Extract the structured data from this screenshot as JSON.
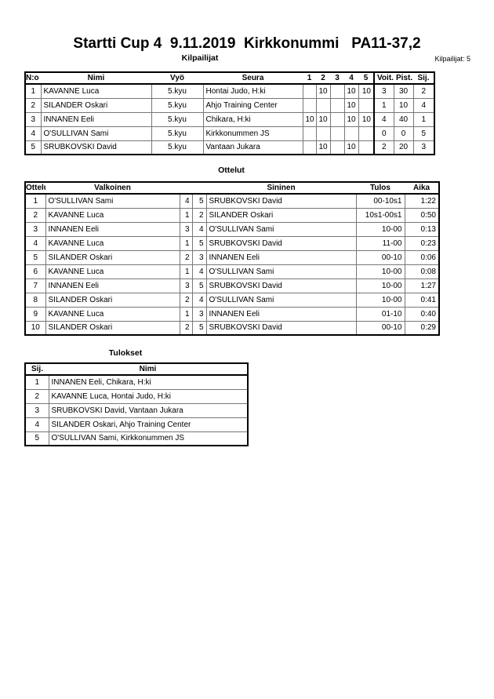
{
  "title": "Startti Cup 4  9.11.2019  Kirkkonummi   PA11-37,2",
  "competitors": {
    "heading": "Kilpailijat",
    "count_label": "Kilpailijat: 5",
    "columns": [
      "N:o",
      "Nimi",
      "Vyö",
      "Seura",
      "1",
      "2",
      "3",
      "4",
      "5",
      "Voit.",
      "Pist.",
      "Sij."
    ],
    "rows": [
      [
        "1",
        "KAVANNE Luca",
        "5.kyu",
        "Hontai Judo, H:ki",
        "",
        "10",
        "",
        "10",
        "10",
        "3",
        "30",
        "2"
      ],
      [
        "2",
        "SILANDER Oskari",
        "5.kyu",
        "Ahjo Training Center",
        "",
        "",
        "",
        "10",
        "",
        "1",
        "10",
        "4"
      ],
      [
        "3",
        "INNANEN Eeli",
        "5.kyu",
        "Chikara, H:ki",
        "10",
        "10",
        "",
        "10",
        "10",
        "4",
        "40",
        "1"
      ],
      [
        "4",
        "O'SULLIVAN Sami",
        "5.kyu",
        "Kirkkonummen JS",
        "",
        "",
        "",
        "",
        "",
        "0",
        "0",
        "5"
      ],
      [
        "5",
        "SRUBKOVSKI David",
        "5.kyu",
        "Vantaan Jukara",
        "",
        "10",
        "",
        "10",
        "",
        "2",
        "20",
        "3"
      ]
    ]
  },
  "matches": {
    "heading": "Ottelut",
    "columns": [
      "Ottelu",
      "Valkoinen",
      "",
      "",
      "Sininen",
      "Tulos",
      "Aika"
    ],
    "rows": [
      [
        "1",
        "O'SULLIVAN Sami",
        "4",
        "5",
        "SRUBKOVSKI David",
        "00-10s1",
        "1:22"
      ],
      [
        "2",
        "KAVANNE Luca",
        "1",
        "2",
        "SILANDER Oskari",
        "10s1-00s1",
        "0:50"
      ],
      [
        "3",
        "INNANEN Eeli",
        "3",
        "4",
        "O'SULLIVAN Sami",
        "10-00",
        "0:13"
      ],
      [
        "4",
        "KAVANNE Luca",
        "1",
        "5",
        "SRUBKOVSKI David",
        "11-00",
        "0:23"
      ],
      [
        "5",
        "SILANDER Oskari",
        "2",
        "3",
        "INNANEN Eeli",
        "00-10",
        "0:06"
      ],
      [
        "6",
        "KAVANNE Luca",
        "1",
        "4",
        "O'SULLIVAN Sami",
        "10-00",
        "0:08"
      ],
      [
        "7",
        "INNANEN Eeli",
        "3",
        "5",
        "SRUBKOVSKI David",
        "10-00",
        "1:27"
      ],
      [
        "8",
        "SILANDER Oskari",
        "2",
        "4",
        "O'SULLIVAN Sami",
        "10-00",
        "0:41"
      ],
      [
        "9",
        "KAVANNE Luca",
        "1",
        "3",
        "INNANEN Eeli",
        "01-10",
        "0:40"
      ],
      [
        "10",
        "SILANDER Oskari",
        "2",
        "5",
        "SRUBKOVSKI David",
        "00-10",
        "0:29"
      ]
    ]
  },
  "results": {
    "heading": "Tulokset",
    "columns": [
      "Sij.",
      "Nimi"
    ],
    "rows": [
      [
        "1",
        "INNANEN Eeli, Chikara, H:ki"
      ],
      [
        "2",
        "KAVANNE Luca, Hontai Judo, H:ki"
      ],
      [
        "3",
        "SRUBKOVSKI David, Vantaan Jukara"
      ],
      [
        "4",
        "SILANDER Oskari, Ahjo Training Center"
      ],
      [
        "5",
        "O'SULLIVAN Sami, Kirkkonummen JS"
      ]
    ]
  }
}
